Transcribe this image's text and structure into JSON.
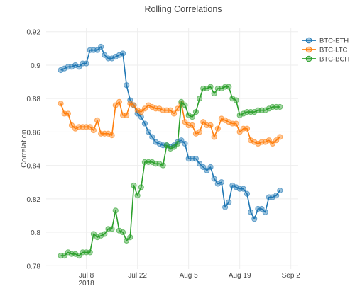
{
  "chart_data": {
    "type": "line",
    "title": "Rolling Correlations",
    "xlabel": "",
    "ylabel": "Correlation",
    "xlim": [
      "2018-06-27",
      "2018-09-04"
    ],
    "ylim": [
      0.778,
      0.922
    ],
    "x_ticks": [
      {
        "date": "2018-07-08",
        "label": "Jul 8",
        "sublabel": "2018"
      },
      {
        "date": "2018-07-22",
        "label": "Jul 22",
        "sublabel": ""
      },
      {
        "date": "2018-08-05",
        "label": "Aug 5",
        "sublabel": ""
      },
      {
        "date": "2018-08-19",
        "label": "Aug 19",
        "sublabel": ""
      },
      {
        "date": "2018-09-02",
        "label": "Sep 2",
        "sublabel": ""
      }
    ],
    "y_ticks": [
      {
        "value": 0.78,
        "label": "0.78"
      },
      {
        "value": 0.8,
        "label": "0.8"
      },
      {
        "value": 0.82,
        "label": "0.82"
      },
      {
        "value": 0.84,
        "label": "0.84"
      },
      {
        "value": 0.86,
        "label": "0.86"
      },
      {
        "value": 0.88,
        "label": "0.88"
      },
      {
        "value": 0.9,
        "label": "0.9"
      },
      {
        "value": 0.92,
        "label": "0.92"
      }
    ],
    "grid": true,
    "legend_position": "top-right",
    "x": [
      "2018-07-01",
      "2018-07-02",
      "2018-07-03",
      "2018-07-04",
      "2018-07-05",
      "2018-07-06",
      "2018-07-07",
      "2018-07-08",
      "2018-07-09",
      "2018-07-10",
      "2018-07-11",
      "2018-07-12",
      "2018-07-13",
      "2018-07-14",
      "2018-07-15",
      "2018-07-16",
      "2018-07-17",
      "2018-07-18",
      "2018-07-19",
      "2018-07-20",
      "2018-07-21",
      "2018-07-22",
      "2018-07-23",
      "2018-07-24",
      "2018-07-25",
      "2018-07-26",
      "2018-07-27",
      "2018-07-28",
      "2018-07-29",
      "2018-07-30",
      "2018-07-31",
      "2018-08-01",
      "2018-08-02",
      "2018-08-03",
      "2018-08-04",
      "2018-08-05",
      "2018-08-06",
      "2018-08-07",
      "2018-08-08",
      "2018-08-09",
      "2018-08-10",
      "2018-08-11",
      "2018-08-12",
      "2018-08-13",
      "2018-08-14",
      "2018-08-15",
      "2018-08-16",
      "2018-08-17",
      "2018-08-18",
      "2018-08-19",
      "2018-08-20",
      "2018-08-21",
      "2018-08-22",
      "2018-08-23",
      "2018-08-24",
      "2018-08-25",
      "2018-08-26",
      "2018-08-27",
      "2018-08-28",
      "2018-08-29",
      "2018-08-30"
    ],
    "series": [
      {
        "name": "BTC-ETH",
        "color": "#1f77b4",
        "values": [
          0.897,
          0.898,
          0.899,
          0.899,
          0.9,
          0.899,
          0.901,
          0.901,
          0.909,
          0.909,
          0.909,
          0.911,
          0.906,
          0.904,
          0.904,
          0.905,
          0.906,
          0.907,
          0.888,
          0.879,
          0.876,
          0.871,
          0.869,
          0.865,
          0.86,
          0.857,
          0.854,
          0.853,
          0.852,
          0.852,
          0.851,
          0.852,
          0.854,
          0.855,
          0.853,
          0.844,
          0.844,
          0.844,
          0.841,
          0.839,
          0.837,
          0.839,
          0.832,
          0.829,
          0.83,
          0.815,
          0.818,
          0.828,
          0.827,
          0.826,
          0.826,
          0.823,
          0.812,
          0.808,
          0.814,
          0.814,
          0.812,
          0.821,
          0.821,
          0.822,
          0.825
        ]
      },
      {
        "name": "BTC-LTC",
        "color": "#ff7f0e",
        "values": [
          0.877,
          0.871,
          0.871,
          0.864,
          0.862,
          0.863,
          0.863,
          0.863,
          0.863,
          0.861,
          0.867,
          0.859,
          0.859,
          0.859,
          0.858,
          0.876,
          0.878,
          0.87,
          0.87,
          0.877,
          0.876,
          0.873,
          0.872,
          0.874,
          0.876,
          0.875,
          0.874,
          0.874,
          0.873,
          0.873,
          0.873,
          0.871,
          0.874,
          0.877,
          0.866,
          0.864,
          0.864,
          0.859,
          0.86,
          0.866,
          0.864,
          0.864,
          0.857,
          0.862,
          0.868,
          0.867,
          0.866,
          0.865,
          0.865,
          0.86,
          0.862,
          0.862,
          0.855,
          0.854,
          0.853,
          0.854,
          0.854,
          0.855,
          0.853,
          0.855,
          0.857
        ]
      },
      {
        "name": "BTC-BCH",
        "color": "#2ca02c",
        "values": [
          0.786,
          0.786,
          0.788,
          0.787,
          0.787,
          0.786,
          0.788,
          0.788,
          0.788,
          0.799,
          0.797,
          0.798,
          0.799,
          0.802,
          0.802,
          0.813,
          0.801,
          0.8,
          0.795,
          0.797,
          0.828,
          0.822,
          0.827,
          0.842,
          0.842,
          0.842,
          0.841,
          0.841,
          0.84,
          0.852,
          0.85,
          0.851,
          0.853,
          0.878,
          0.876,
          0.87,
          0.869,
          0.872,
          0.88,
          0.886,
          0.886,
          0.887,
          0.883,
          0.886,
          0.886,
          0.887,
          0.887,
          0.88,
          0.879,
          0.87,
          0.871,
          0.872,
          0.872,
          0.872,
          0.873,
          0.873,
          0.873,
          0.874,
          0.875,
          0.875,
          0.875
        ]
      }
    ]
  }
}
